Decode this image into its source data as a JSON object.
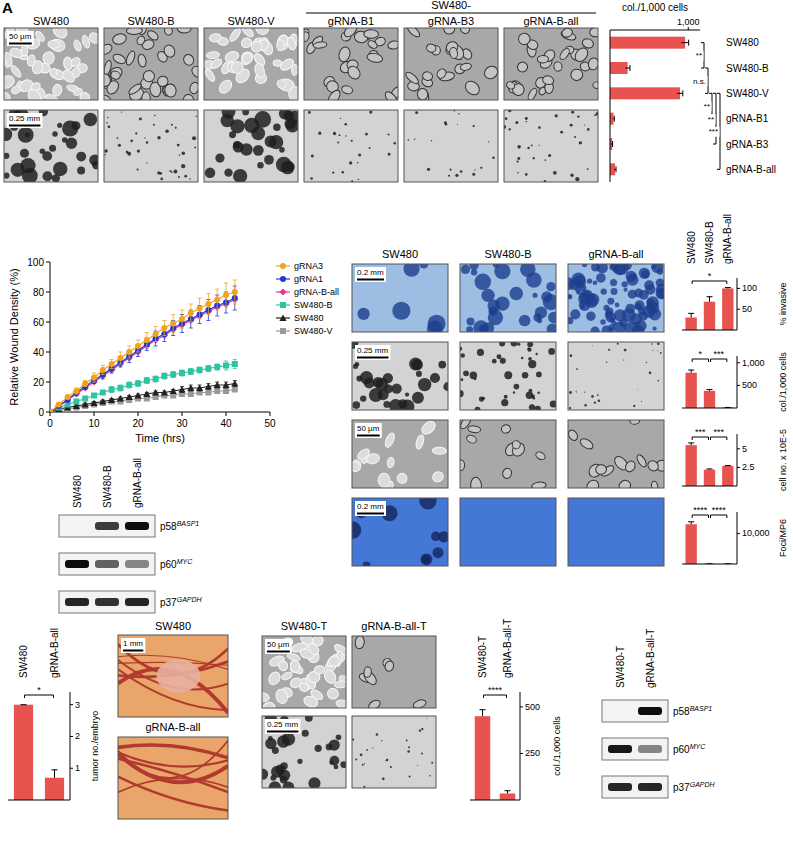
{
  "panel_letter": "A",
  "figure": {
    "images_a": {
      "group_header": "SW480-",
      "columns": [
        "SW480",
        "SW480-B",
        "SW480-V",
        "gRNA-B1",
        "gRNA-B3",
        "gRNA-B-all"
      ],
      "scale_bars": [
        "50 µm",
        "0.25 mm"
      ]
    },
    "images_c": {
      "columns": [
        "SW480",
        "SW480-B",
        "gRNA-B-all"
      ],
      "scale_bars": [
        "0.2 mm",
        "0.25 mm",
        "50 µm",
        "0.2 mm"
      ]
    },
    "blot_d": {
      "lanes": [
        "SW480",
        "SW480-B",
        "gRNA-B-all"
      ],
      "rows": [
        {
          "label": "p58",
          "superscript": "BASP1",
          "intensity": [
            0,
            0.75,
            0.95
          ]
        },
        {
          "label": "p60",
          "superscript": "MYC",
          "intensity": [
            0.95,
            0.6,
            0.45
          ]
        },
        {
          "label": "p37",
          "superscript": "GAPDH",
          "intensity": [
            0.85,
            0.8,
            0.85
          ]
        }
      ]
    },
    "images_e": {
      "titles": [
        "SW480",
        "gRNA-B-all"
      ],
      "scale_bar": "1 mm"
    },
    "images_f": {
      "columns": [
        "SW480-T",
        "gRNA-B-all-T"
      ],
      "scale_bars": [
        "50 µm",
        "0.25 mm"
      ]
    },
    "blot_f": {
      "lanes": [
        "SW480-T",
        "gRNA-B-all-T"
      ],
      "rows": [
        {
          "label": "p58",
          "superscript": "BASP1",
          "intensity": [
            0,
            0.95
          ]
        },
        {
          "label": "p60",
          "superscript": "MYC",
          "intensity": [
            0.9,
            0.45
          ]
        },
        {
          "label": "p37",
          "superscript": "GAPDH",
          "intensity": [
            0.85,
            0.85
          ]
        }
      ]
    }
  },
  "chart_data": [
    {
      "type": "bar",
      "orientation": "horizontal",
      "title": "col./1,000 cells",
      "categories": [
        "SW480",
        "SW480-B",
        "SW480-V",
        "gRNA-B1",
        "gRNA-B3",
        "gRNA-B-all"
      ],
      "values": [
        960,
        225,
        895,
        45,
        25,
        65
      ],
      "errors": [
        45,
        30,
        35,
        10,
        8,
        12
      ],
      "xlim": [
        0,
        1150
      ],
      "xticks": [
        {
          "value": 1000,
          "label": "1,000"
        }
      ],
      "color": "#e8534f",
      "annotations": [
        {
          "from": 0,
          "to": 1,
          "text": "**"
        },
        {
          "from": 1,
          "to": 2,
          "text": "n.s."
        },
        {
          "from": 2,
          "to": 3,
          "text": "**"
        },
        {
          "from": 2,
          "to": 4,
          "text": "**"
        },
        {
          "from": 2,
          "to": 5,
          "text": "***"
        }
      ]
    },
    {
      "type": "line",
      "x": [
        0,
        2,
        4,
        6,
        8,
        10,
        12,
        14,
        16,
        18,
        20,
        22,
        24,
        26,
        28,
        30,
        32,
        34,
        36,
        38,
        40,
        42
      ],
      "xlim": [
        0,
        50
      ],
      "ylim": [
        0,
        100
      ],
      "xticks": [
        0,
        10,
        20,
        30,
        40,
        50
      ],
      "yticks": [
        0,
        20,
        40,
        60,
        80,
        100
      ],
      "x_label": "Time (hrs)",
      "y_label": "Relative Wound Density (%)",
      "legend": "right",
      "series": [
        {
          "name": "gRNA3",
          "color": "#f5a21b",
          "marker": "circle",
          "values": [
            0,
            5,
            10,
            14,
            19,
            23,
            28,
            32,
            36,
            40,
            44,
            48,
            52,
            56,
            59,
            62,
            66,
            69,
            72,
            75,
            78,
            80
          ],
          "errors": [
            0,
            1,
            1,
            2,
            2,
            3,
            3,
            3,
            4,
            4,
            4,
            5,
            5,
            5,
            6,
            6,
            6,
            7,
            7,
            7,
            8,
            8
          ]
        },
        {
          "name": "gRNA1",
          "color": "#1f3bd6",
          "marker": "circle",
          "values": [
            0,
            4,
            8,
            13,
            17,
            21,
            25,
            29,
            33,
            37,
            41,
            45,
            49,
            52,
            56,
            59,
            62,
            65,
            68,
            71,
            73,
            76
          ],
          "errors": [
            0,
            1,
            1,
            2,
            2,
            2,
            3,
            3,
            3,
            4,
            4,
            4,
            5,
            5,
            5,
            6,
            6,
            6,
            7,
            7,
            7,
            8
          ]
        },
        {
          "name": "gRNA-B-all",
          "color": "#e6389a",
          "marker": "diamond",
          "values": [
            0,
            4,
            8,
            12,
            16,
            20,
            24,
            28,
            32,
            36,
            40,
            44,
            48,
            51,
            55,
            58,
            61,
            64,
            67,
            70,
            72,
            75
          ]
        },
        {
          "name": "SW480-B",
          "color": "#2ec4a0",
          "marker": "square",
          "values": [
            0,
            3,
            5,
            7,
            9,
            11,
            13,
            15,
            16,
            18,
            19,
            21,
            22,
            24,
            25,
            26,
            27,
            28,
            29,
            30,
            31,
            32
          ],
          "errors": [
            0,
            1,
            1,
            1,
            1,
            1,
            1,
            2,
            2,
            2,
            2,
            2,
            2,
            2,
            2,
            2,
            2,
            2,
            2,
            2,
            3,
            3
          ]
        },
        {
          "name": "SW480",
          "color": "#222222",
          "marker": "triangle",
          "values": [
            0,
            2,
            3,
            4,
            5,
            6,
            7,
            8,
            9,
            10,
            11,
            12,
            13,
            13,
            14,
            15,
            16,
            16,
            17,
            18,
            18,
            19
          ],
          "errors": [
            0,
            0,
            1,
            1,
            1,
            1,
            1,
            1,
            1,
            1,
            1,
            1,
            1,
            1,
            1,
            2,
            2,
            2,
            2,
            2,
            2,
            2
          ]
        },
        {
          "name": "SW480-V",
          "color": "#999999",
          "marker": "square",
          "values": [
            0,
            1,
            2,
            3,
            4,
            5,
            6,
            7,
            7,
            8,
            9,
            9,
            10,
            11,
            11,
            12,
            12,
            13,
            13,
            14,
            14,
            15
          ]
        }
      ]
    },
    {
      "type": "bar",
      "categories": [
        "SW480",
        "SW480-B",
        "gRNA-B-all"
      ],
      "values": [
        30,
        68,
        100
      ],
      "errors": [
        10,
        12,
        2
      ],
      "ylim": [
        0,
        125
      ],
      "yticks": [
        50,
        100
      ],
      "y_label": "% invasive",
      "color": "#e8534f",
      "annotations": [
        {
          "from": 0,
          "to": 2,
          "text": "*"
        }
      ]
    },
    {
      "type": "bar",
      "categories": [
        null,
        null,
        null
      ],
      "values": [
        780,
        380,
        10
      ],
      "errors": [
        60,
        30,
        3
      ],
      "ylim": [
        0,
        1150
      ],
      "yticks": [
        500,
        {
          "value": 1000,
          "label": "1,000"
        }
      ],
      "y_label": "col./1,000 cells",
      "color": "#e8534f",
      "annotations": [
        {
          "from": 0,
          "to": 1,
          "text": "*"
        },
        {
          "from": 1,
          "to": 2,
          "text": "***"
        }
      ]
    },
    {
      "type": "bar",
      "categories": [
        null,
        null,
        null
      ],
      "values": [
        5.5,
        2.2,
        2.7
      ],
      "errors": [
        0.3,
        0.1,
        0.05
      ],
      "ylim": [
        0,
        7
      ],
      "yticks": [
        2.5,
        5
      ],
      "y_label": "cell no. x 10E-5",
      "color": "#e8534f",
      "annotations": [
        {
          "from": 0,
          "to": 1,
          "text": "***"
        },
        {
          "from": 1,
          "to": 2,
          "text": "***"
        }
      ]
    },
    {
      "type": "bar",
      "categories": [
        null,
        null,
        null
      ],
      "values": [
        13000,
        60,
        50
      ],
      "errors": [
        800,
        20,
        20
      ],
      "ylim": [
        0,
        17000
      ],
      "yticks": [
        {
          "value": 10000,
          "label": "10,000"
        }
      ],
      "y_label": "Foci/MP6",
      "color": "#e8534f",
      "annotations": [
        {
          "from": 0,
          "to": 1,
          "text": "****"
        },
        {
          "from": 1,
          "to": 2,
          "text": "****"
        }
      ]
    },
    {
      "type": "bar",
      "categories": [
        "SW480",
        "gRNA-B-all"
      ],
      "values": [
        3,
        0.7
      ],
      "errors": [
        0,
        0.25
      ],
      "ylim": [
        0,
        3.4
      ],
      "yticks": [
        1,
        2,
        3
      ],
      "y_label": "tumor no./embryo",
      "color": "#e8534f",
      "annotations": [
        {
          "from": 0,
          "to": 1,
          "text": "*"
        }
      ]
    },
    {
      "type": "bar",
      "categories": [
        "SW480-T",
        "gRNA-B-all-T"
      ],
      "values": [
        450,
        35
      ],
      "errors": [
        35,
        15
      ],
      "ylim": [
        0,
        580
      ],
      "yticks": [
        250,
        500
      ],
      "y_label": "col./1,000 cells",
      "color": "#e8534f",
      "annotations": [
        {
          "from": 0,
          "to": 1,
          "text": "****"
        }
      ]
    }
  ]
}
